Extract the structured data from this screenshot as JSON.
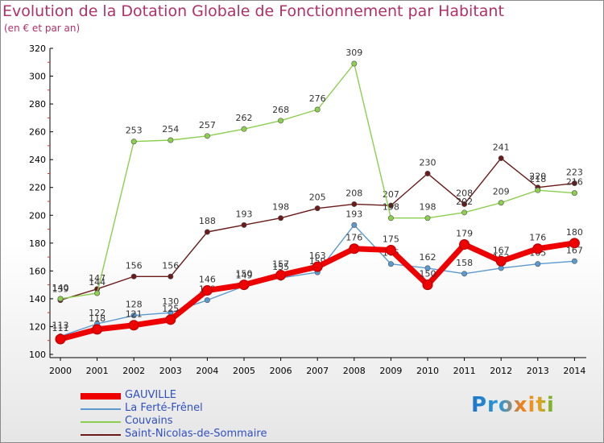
{
  "title": "Evolution de la Dotation Globale de Fonctionnement par Habitant",
  "subtitle": "(en € et par an)",
  "logo": "Proxiti",
  "chart_data": {
    "type": "line",
    "title": "Evolution de la Dotation Globale de Fonctionnement par Habitant",
    "ylabel": "(en € et par an)",
    "ylim": [
      100,
      320
    ],
    "yticks": [
      100,
      120,
      140,
      160,
      180,
      200,
      220,
      240,
      260,
      280,
      300,
      320
    ],
    "x": [
      "2000",
      "2001",
      "2002",
      "2003",
      "2004",
      "2005",
      "2006",
      "2007",
      "2008",
      "2009",
      "2010",
      "2011",
      "2012",
      "2013",
      "2014"
    ],
    "grid": false,
    "legend": "bottom-left",
    "series": [
      {
        "name": "Saint-Nicolas-de-Sommaire",
        "color": "#6b1a1a",
        "values": [
          139,
          147,
          156,
          156,
          188,
          193,
          198,
          205,
          208,
          207,
          230,
          208,
          241,
          220,
          223
        ]
      },
      {
        "name": "Couvains",
        "color": "#8ccf4e",
        "values": [
          140,
          144,
          253,
          254,
          257,
          262,
          268,
          276,
          309,
          198,
          198,
          202,
          209,
          218,
          216
        ]
      },
      {
        "name": "La Ferté-Frênel",
        "color": "#5a9ad0",
        "values": [
          113,
          122,
          128,
          130,
          139,
          149,
          155,
          159,
          193,
          165,
          162,
          158,
          162,
          165,
          167
        ]
      },
      {
        "name": "GAUVILLE",
        "color": "#ee0000",
        "values": [
          111,
          118,
          121,
          125,
          146,
          150,
          157,
          163,
          176,
          175,
          150,
          179,
          167,
          176,
          180
        ]
      }
    ],
    "legend_order": [
      "GAUVILLE",
      "La Ferté-Frênel",
      "Couvains",
      "Saint-Nicolas-de-Sommaire"
    ]
  }
}
